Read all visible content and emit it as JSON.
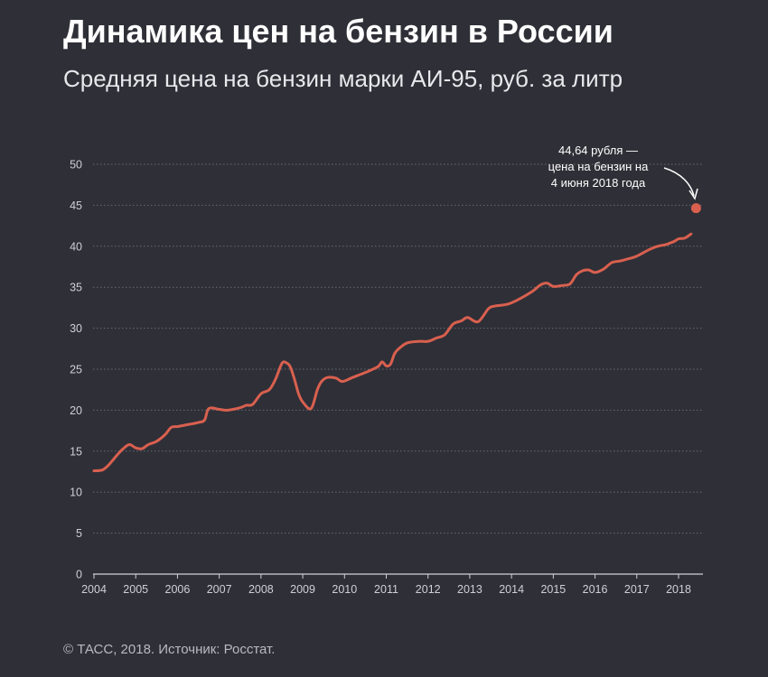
{
  "header": {
    "title": "Динамика цен на бензин в России",
    "subtitle": "Средняя цена на бензин марки АИ-95, руб. за литр"
  },
  "footer": {
    "source": "© ТАСС, 2018. Источник: Росстат."
  },
  "colors": {
    "background": "#2f2f37",
    "series": "#d9604f",
    "grid": "#6a6a74",
    "axis": "#d0d0d6"
  },
  "chart_data": {
    "type": "line",
    "title": "Динамика цен на бензин в России",
    "subtitle": "Средняя цена на бензин марки АИ-95, руб. за литр",
    "xlabel": "",
    "ylabel": "",
    "xlim": [
      2004,
      2018.6
    ],
    "ylim": [
      0,
      50
    ],
    "grid": true,
    "x_ticks": [
      "2004",
      "2005",
      "2006",
      "2007",
      "2008",
      "2009",
      "2010",
      "2011",
      "2012",
      "2013",
      "2014",
      "2015",
      "2016",
      "2017",
      "2018"
    ],
    "y_ticks": [
      0,
      5,
      10,
      15,
      20,
      25,
      30,
      35,
      40,
      45,
      50
    ],
    "series": [
      {
        "x": [
          2004.0,
          2004.2,
          2004.35,
          2004.55,
          2004.7,
          2004.85,
          2005.0,
          2005.15,
          2005.3,
          2005.5,
          2005.7,
          2005.85,
          2006.0,
          2006.2,
          2006.5,
          2006.65,
          2006.75,
          2007.0,
          2007.2,
          2007.5,
          2007.65,
          2007.8,
          2008.0,
          2008.2,
          2008.35,
          2008.5,
          2008.6,
          2008.7,
          2008.8,
          2008.9,
          2009.0,
          2009.2,
          2009.35,
          2009.45,
          2009.6,
          2009.8,
          2009.95,
          2010.2,
          2010.5,
          2010.8,
          2010.9,
          2011.0,
          2011.1,
          2011.2,
          2011.3,
          2011.5,
          2011.8,
          2012.0,
          2012.2,
          2012.4,
          2012.6,
          2012.8,
          2012.95,
          2013.2,
          2013.45,
          2013.6,
          2013.75,
          2013.95,
          2014.2,
          2014.5,
          2014.7,
          2014.85,
          2015.0,
          2015.2,
          2015.4,
          2015.55,
          2015.7,
          2015.85,
          2016.0,
          2016.2,
          2016.4,
          2016.6,
          2016.75,
          2017.0,
          2017.3,
          2017.5,
          2017.7,
          2017.8,
          2017.9,
          2018.0,
          2018.15,
          2018.3
        ],
        "values": [
          12.6,
          12.7,
          13.3,
          14.5,
          15.3,
          15.8,
          15.4,
          15.3,
          15.8,
          16.2,
          17.0,
          17.9,
          18.0,
          18.2,
          18.5,
          18.8,
          20.2,
          20.1,
          20.0,
          20.3,
          20.6,
          20.7,
          22.0,
          22.5,
          23.8,
          25.7,
          25.8,
          25.3,
          23.8,
          22.0,
          21.0,
          20.2,
          22.5,
          23.5,
          24.0,
          23.9,
          23.5,
          24.0,
          24.6,
          25.3,
          25.9,
          25.4,
          25.6,
          26.9,
          27.5,
          28.2,
          28.4,
          28.4,
          28.8,
          29.2,
          30.5,
          30.9,
          31.3,
          30.8,
          32.4,
          32.7,
          32.8,
          33.0,
          33.6,
          34.5,
          35.3,
          35.5,
          35.1,
          35.2,
          35.4,
          36.5,
          37.0,
          37.1,
          36.8,
          37.2,
          38.0,
          38.2,
          38.4,
          38.8,
          39.6,
          40.0,
          40.2,
          40.4,
          40.6,
          40.9,
          41.0,
          41.5
        ]
      }
    ],
    "highlight_point": {
      "x": 2018.42,
      "y": 44.64
    },
    "annotation": {
      "line1": "44,64 рубля —",
      "line2": "цена на бензин на",
      "line3": "4 июня 2018 года"
    }
  }
}
